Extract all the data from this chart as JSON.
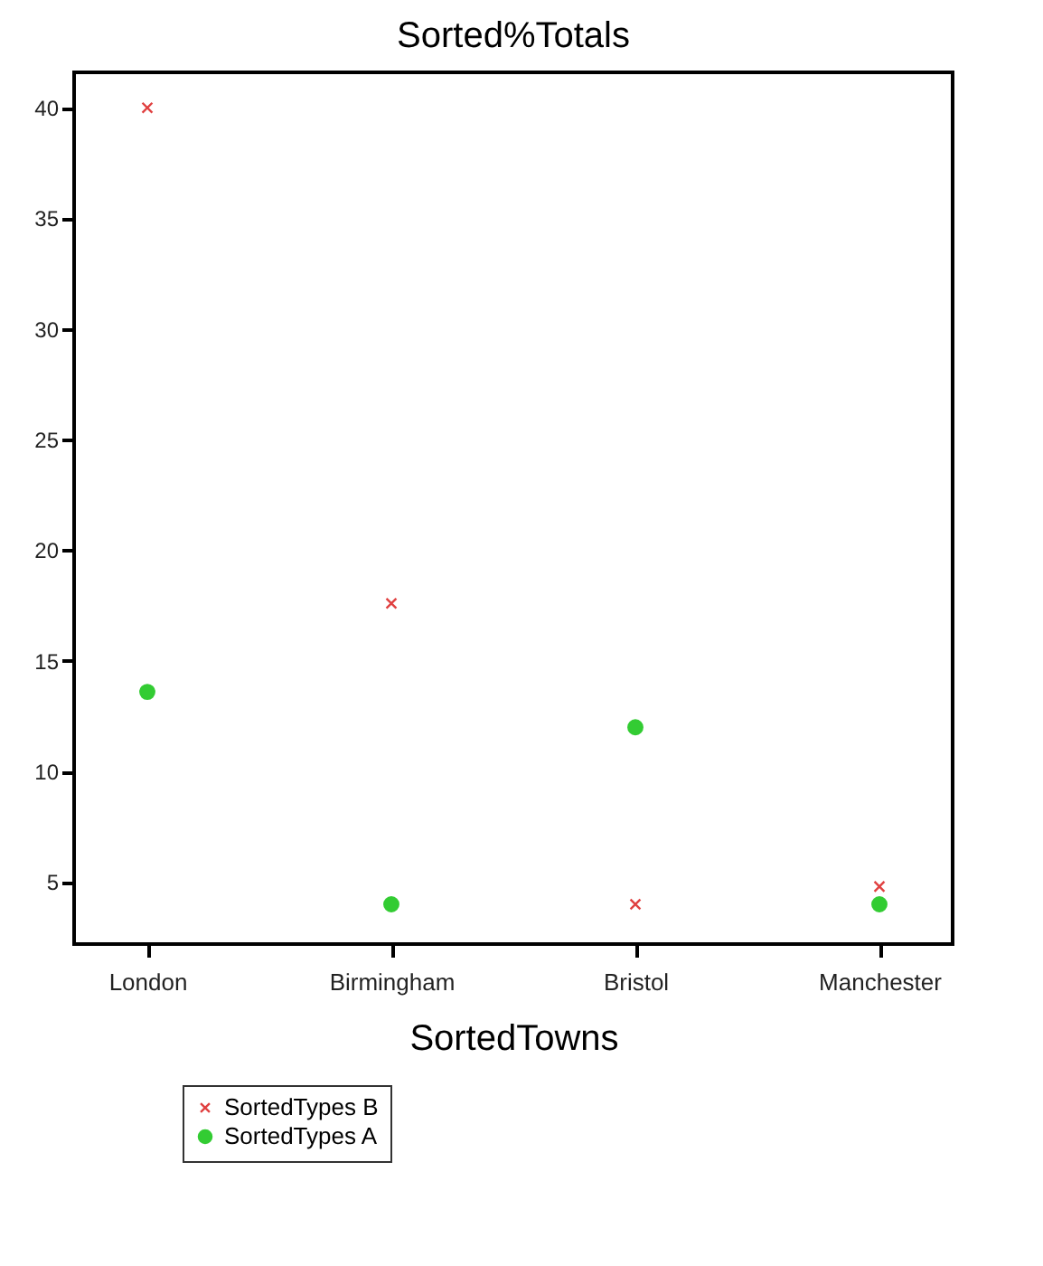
{
  "chart_data": {
    "type": "scatter",
    "title": "Sorted%Totals",
    "xlabel": "SortedTowns",
    "categories": [
      "London",
      "Birmingham",
      "Bristol",
      "Manchester"
    ],
    "series": [
      {
        "name": "SortedTypes B",
        "color": "#e04040",
        "marker": "cross",
        "values": [
          40,
          17.6,
          4,
          4.8
        ]
      },
      {
        "name": "SortedTypes A",
        "color": "#33cc33",
        "marker": "circle",
        "values": [
          13.6,
          4,
          12,
          4
        ]
      }
    ],
    "ylim": [
      2.2,
      41.6
    ],
    "yticks": [
      5,
      10,
      15,
      20,
      25,
      30,
      35,
      40
    ],
    "grid": false,
    "legend": "bottom left"
  }
}
